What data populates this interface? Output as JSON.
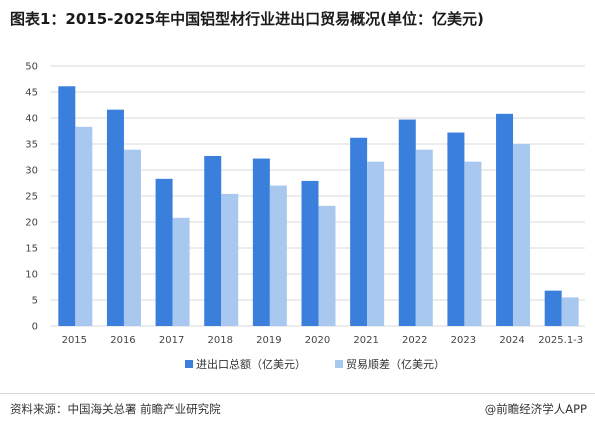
{
  "title": "图表1：2015-2025年中国铝型材行业进出口贸易概况(单位：亿美元)",
  "footer": {
    "source": "资料来源：中国海关总署 前瞻产业研究院",
    "brand": "@前瞻经济学人APP"
  },
  "colors": {
    "series_1": "#3a7fdc",
    "series_2": "#a9c8f0",
    "grid": "#d9d9d9"
  },
  "chart_data": {
    "type": "bar",
    "title": "图表1：2015-2025年中国铝型材行业进出口贸易概况(单位：亿美元)",
    "categories": [
      "2015",
      "2016",
      "2017",
      "2018",
      "2019",
      "2020",
      "2021",
      "2022",
      "2023",
      "2024",
      "2025.1-3"
    ],
    "series": [
      {
        "name": "进出口总额（亿美元）",
        "values": [
          46.1,
          41.6,
          28.3,
          32.7,
          32.2,
          27.9,
          36.2,
          39.7,
          37.2,
          40.8,
          6.8
        ]
      },
      {
        "name": "贸易顺差（亿美元）",
        "values": [
          38.3,
          33.9,
          20.8,
          25.4,
          27.0,
          23.1,
          31.6,
          33.9,
          31.6,
          35.0,
          5.5
        ]
      }
    ],
    "ylim": [
      0,
      50
    ],
    "yticks": [
      0,
      5,
      10,
      15,
      20,
      25,
      30,
      35,
      40,
      45,
      50
    ],
    "xlabel": "",
    "ylabel": "",
    "grid": true,
    "legend": "bottom-center"
  }
}
